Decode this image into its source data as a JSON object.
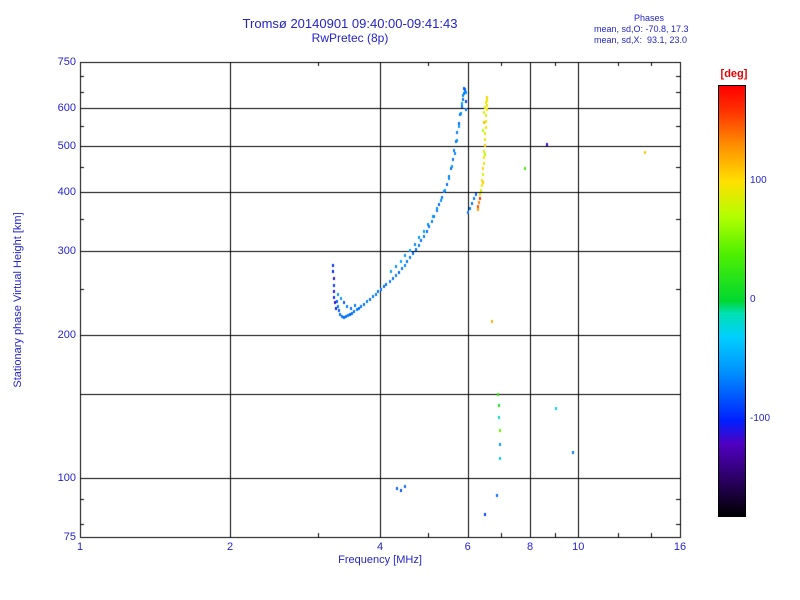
{
  "header": {
    "title": "Tromsø 20140901 09:40:00-09:41:43",
    "subtitle": "RwPretec (8p)",
    "annotation": {
      "line1": "Phases",
      "line2": "mean, sd,O: -70.8, 17.3",
      "line3": "mean, sd,X:  93.1, 23.0"
    }
  },
  "colors": {
    "text_blue": "#2424c8",
    "deg_label_red": "#e80000",
    "grid": "#000000",
    "background": "#ffffff"
  },
  "chart_data": {
    "type": "scatter",
    "title": "Tromsø 20140901 09:40:00-09:41:43",
    "subtitle": "RwPretec (8p)",
    "xlabel": "Frequency [MHz]",
    "ylabel": "Stationary phase Virtual Height [km]",
    "x_scale": "log",
    "y_scale": "log",
    "xlim": [
      1,
      16
    ],
    "ylim": [
      75,
      750
    ],
    "x_ticks_labeled": [
      1,
      2,
      4,
      6,
      8,
      10,
      16
    ],
    "x_gridlines": [
      2,
      4,
      6,
      8,
      10
    ],
    "x_minor_ticks": [
      3,
      5,
      7,
      9,
      12,
      14
    ],
    "y_ticks_labeled": [
      75,
      100,
      200,
      300,
      400,
      500,
      600,
      750
    ],
    "y_gridlines": [
      100,
      150,
      200,
      300,
      400,
      500,
      600
    ],
    "y_minor_ticks": [
      80,
      90,
      250,
      350,
      450,
      550,
      650,
      700
    ],
    "grid": true,
    "colorbar": {
      "label": "[deg]",
      "min": -180,
      "max": 180,
      "tick_values": [
        100,
        0,
        -100
      ],
      "stops": [
        {
          "value": -180,
          "color": "#000000"
        },
        {
          "value": -150,
          "color": "#2a0060"
        },
        {
          "value": -120,
          "color": "#5000c0"
        },
        {
          "value": -100,
          "color": "#0020ff"
        },
        {
          "value": -60,
          "color": "#0090ff"
        },
        {
          "value": -30,
          "color": "#00d0ff"
        },
        {
          "value": -10,
          "color": "#00e0b0"
        },
        {
          "value": 0,
          "color": "#00d830"
        },
        {
          "value": 40,
          "color": "#50f000"
        },
        {
          "value": 70,
          "color": "#b0ff00"
        },
        {
          "value": 100,
          "color": "#ffe000"
        },
        {
          "value": 130,
          "color": "#ff9000"
        },
        {
          "value": 160,
          "color": "#ff3000"
        },
        {
          "value": 180,
          "color": "#ff0000"
        }
      ]
    },
    "series_meaning": "points are [frequency_MHz, virtual_height_km, phase_deg]",
    "points": [
      [
        3.22,
        281,
        -95
      ],
      [
        3.22,
        272,
        -100
      ],
      [
        3.23,
        263,
        -110
      ],
      [
        3.23,
        255,
        -90
      ],
      [
        3.24,
        247,
        -105
      ],
      [
        3.24,
        240,
        -95
      ],
      [
        3.25,
        234,
        -115
      ],
      [
        3.26,
        228,
        -100
      ],
      [
        3.28,
        236,
        -75
      ],
      [
        3.3,
        230,
        -70
      ],
      [
        3.31,
        225,
        -80
      ],
      [
        3.33,
        221,
        -72
      ],
      [
        3.36,
        219,
        -68
      ],
      [
        3.39,
        218,
        -75
      ],
      [
        3.42,
        219,
        -70
      ],
      [
        3.45,
        220,
        -65
      ],
      [
        3.48,
        221,
        -78
      ],
      [
        3.51,
        222,
        -70
      ],
      [
        3.55,
        224,
        -72
      ],
      [
        3.59,
        226,
        -68
      ],
      [
        3.63,
        228,
        -74
      ],
      [
        3.67,
        230,
        -70
      ],
      [
        3.3,
        243,
        -60
      ],
      [
        3.34,
        239,
        -55
      ],
      [
        3.38,
        234,
        -82
      ],
      [
        3.44,
        230,
        -66
      ],
      [
        3.5,
        228,
        -73
      ],
      [
        3.57,
        231,
        -69
      ],
      [
        3.72,
        232,
        -71
      ],
      [
        3.77,
        235,
        -68
      ],
      [
        3.82,
        238,
        -73
      ],
      [
        3.87,
        241,
        -70
      ],
      [
        3.92,
        244,
        -67
      ],
      [
        3.97,
        247,
        -72
      ],
      [
        4.02,
        250,
        -69
      ],
      [
        4.07,
        253,
        -74
      ],
      [
        4.12,
        256,
        -70
      ],
      [
        4.18,
        260,
        -66
      ],
      [
        4.24,
        263,
        -72
      ],
      [
        4.3,
        267,
        -68
      ],
      [
        4.36,
        271,
        -75
      ],
      [
        4.42,
        276,
        -70
      ],
      [
        4.48,
        281,
        -65
      ],
      [
        4.54,
        286,
        -71
      ],
      [
        4.6,
        291,
        -68
      ],
      [
        4.66,
        297,
        -74
      ],
      [
        4.72,
        303,
        -70
      ],
      [
        4.78,
        309,
        -67
      ],
      [
        4.84,
        316,
        -72
      ],
      [
        4.9,
        323,
        -69
      ],
      [
        4.96,
        330,
        -73
      ],
      [
        5.02,
        338,
        -70
      ],
      [
        5.08,
        347,
        -66
      ],
      [
        5.14,
        356,
        -71
      ],
      [
        5.2,
        366,
        -68
      ],
      [
        5.26,
        377,
        -74
      ],
      [
        5.32,
        389,
        -70
      ],
      [
        5.38,
        402,
        -67
      ],
      [
        5.44,
        416,
        -72
      ],
      [
        5.5,
        432,
        -69
      ],
      [
        5.55,
        449,
        -73
      ],
      [
        5.6,
        468,
        -70
      ],
      [
        5.64,
        489,
        -66
      ],
      [
        5.68,
        511,
        -71
      ],
      [
        5.72,
        534,
        -68
      ],
      [
        5.76,
        558,
        -74
      ],
      [
        5.8,
        582,
        -70
      ],
      [
        5.84,
        606,
        -67
      ],
      [
        5.87,
        627,
        -72
      ],
      [
        5.9,
        645,
        -69
      ],
      [
        5.92,
        657,
        -75
      ],
      [
        4.2,
        272,
        -55
      ],
      [
        4.3,
        279,
        -60
      ],
      [
        4.4,
        286,
        -52
      ],
      [
        4.5,
        294,
        -58
      ],
      [
        4.6,
        302,
        -55
      ],
      [
        4.7,
        311,
        -62
      ],
      [
        4.8,
        321,
        -57
      ],
      [
        4.9,
        331,
        -53
      ],
      [
        5.0,
        342,
        -60
      ],
      [
        5.1,
        355,
        -56
      ],
      [
        5.2,
        369,
        -62
      ],
      [
        5.3,
        385,
        -58
      ],
      [
        5.4,
        404,
        -54
      ],
      [
        5.5,
        427,
        -60
      ],
      [
        5.58,
        452,
        -56
      ],
      [
        5.65,
        482,
        -62
      ],
      [
        5.71,
        515,
        -58
      ],
      [
        5.76,
        549,
        -54
      ],
      [
        5.81,
        585,
        -60
      ],
      [
        5.85,
        616,
        -56
      ],
      [
        5.88,
        640,
        -62
      ],
      [
        5.89,
        660,
        -80
      ],
      [
        5.93,
        648,
        -65
      ],
      [
        5.94,
        622,
        -90
      ],
      [
        5.95,
        598,
        -70
      ],
      [
        5.96,
        650,
        -60
      ],
      [
        6.02,
        362,
        -70
      ],
      [
        6.07,
        370,
        -64
      ],
      [
        6.12,
        379,
        -72
      ],
      [
        6.17,
        388,
        -67
      ],
      [
        6.22,
        396,
        -74
      ],
      [
        6.28,
        374,
        150
      ],
      [
        6.3,
        368,
        125
      ],
      [
        6.31,
        380,
        135
      ],
      [
        6.34,
        388,
        160
      ],
      [
        6.36,
        396,
        95
      ],
      [
        6.38,
        404,
        88
      ],
      [
        6.4,
        414,
        100
      ],
      [
        6.42,
        424,
        92
      ],
      [
        6.44,
        436,
        85
      ],
      [
        6.45,
        448,
        105
      ],
      [
        6.46,
        460,
        90
      ],
      [
        6.47,
        474,
        96
      ],
      [
        6.48,
        488,
        83
      ],
      [
        6.49,
        502,
        110
      ],
      [
        6.5,
        517,
        94
      ],
      [
        6.51,
        532,
        88
      ],
      [
        6.52,
        548,
        102
      ],
      [
        6.53,
        564,
        91
      ],
      [
        6.54,
        580,
        86
      ],
      [
        6.55,
        596,
        98
      ],
      [
        6.56,
        610,
        93
      ],
      [
        6.57,
        623,
        89
      ],
      [
        6.55,
        633,
        104
      ],
      [
        6.52,
        618,
        96
      ],
      [
        6.49,
        603,
        90
      ],
      [
        6.46,
        588,
        84
      ],
      [
        6.43,
        540,
        70
      ],
      [
        6.47,
        560,
        115
      ],
      [
        6.5,
        480,
        75
      ],
      [
        6.44,
        420,
        108
      ],
      [
        4.33,
        95,
        -78
      ],
      [
        4.41,
        94,
        -84
      ],
      [
        4.49,
        96,
        -74
      ],
      [
        6.5,
        84,
        -92
      ],
      [
        6.88,
        92,
        -72
      ],
      [
        6.9,
        150,
        25
      ],
      [
        6.92,
        142,
        10
      ],
      [
        6.94,
        134,
        -15
      ],
      [
        6.96,
        126,
        45
      ],
      [
        6.98,
        118,
        -55
      ],
      [
        6.95,
        110,
        -35
      ],
      [
        6.7,
        214,
        118
      ],
      [
        7.8,
        449,
        35
      ],
      [
        8.66,
        505,
        -115
      ],
      [
        9.02,
        140,
        -25
      ],
      [
        9.78,
        113,
        -68
      ],
      [
        13.6,
        484,
        108
      ]
    ]
  }
}
